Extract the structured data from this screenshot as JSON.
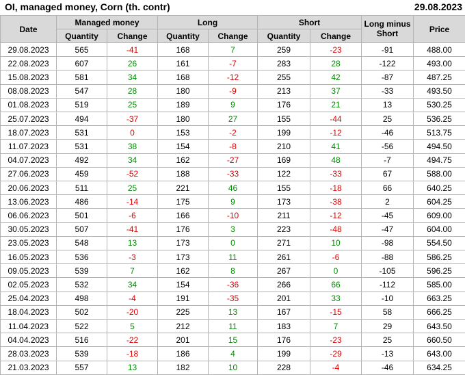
{
  "title": "OI, managed money, Corn (th. contr)",
  "report_date": "29.08.2023",
  "colors": {
    "positive": "#008b00",
    "negative": "#dd0000",
    "header_bg": "#d9d9d9",
    "border": "#b3b3b3",
    "text": "#000000"
  },
  "table_header": {
    "date": "Date",
    "managed_money": "Managed money",
    "long": "Long",
    "short": "Short",
    "long_minus_short": "Long minus Short",
    "price": "Price",
    "quantity": "Quantity",
    "change": "Change"
  },
  "chart_data": {
    "type": "table",
    "title": "OI, managed money, Corn (th. contr)",
    "as_of_date": "29.08.2023",
    "columns": [
      "Date",
      "Managed money Quantity",
      "Managed money Change",
      "Long Quantity",
      "Long Change",
      "Short Quantity",
      "Short Change",
      "Long minus Short",
      "Price"
    ],
    "rows": [
      {
        "cells": [
          "29.08.2023",
          "565",
          "-41",
          "168",
          "7",
          "259",
          "-23",
          "-91",
          "488.00"
        ],
        "change_colors": [
          "neg",
          "pos",
          "neg"
        ]
      },
      {
        "cells": [
          "22.08.2023",
          "607",
          "26",
          "161",
          "-7",
          "283",
          "28",
          "-122",
          "493.00"
        ],
        "change_colors": [
          "pos",
          "neg",
          "pos"
        ]
      },
      {
        "cells": [
          "15.08.2023",
          "581",
          "34",
          "168",
          "-12",
          "255",
          "42",
          "-87",
          "487.25"
        ],
        "change_colors": [
          "pos",
          "neg",
          "pos"
        ]
      },
      {
        "cells": [
          "08.08.2023",
          "547",
          "28",
          "180",
          "-9",
          "213",
          "37",
          "-33",
          "493.50"
        ],
        "change_colors": [
          "pos",
          "neg",
          "pos"
        ]
      },
      {
        "cells": [
          "01.08.2023",
          "519",
          "25",
          "189",
          "9",
          "176",
          "21",
          "13",
          "530.25"
        ],
        "change_colors": [
          "pos",
          "pos",
          "pos"
        ]
      },
      {
        "cells": [
          "25.07.2023",
          "494",
          "-37",
          "180",
          "27",
          "155",
          "-44",
          "25",
          "536.25"
        ],
        "change_colors": [
          "neg",
          "pos",
          "neg"
        ]
      },
      {
        "cells": [
          "18.07.2023",
          "531",
          "0",
          "153",
          "-2",
          "199",
          "-12",
          "-46",
          "513.75"
        ],
        "change_colors": [
          "neg",
          "neg",
          "neg"
        ]
      },
      {
        "cells": [
          "11.07.2023",
          "531",
          "38",
          "154",
          "-8",
          "210",
          "41",
          "-56",
          "494.50"
        ],
        "change_colors": [
          "pos",
          "neg",
          "pos"
        ]
      },
      {
        "cells": [
          "04.07.2023",
          "492",
          "34",
          "162",
          "-27",
          "169",
          "48",
          "-7",
          "494.75"
        ],
        "change_colors": [
          "pos",
          "neg",
          "pos"
        ]
      },
      {
        "cells": [
          "27.06.2023",
          "459",
          "-52",
          "188",
          "-33",
          "122",
          "-33",
          "67",
          "588.00"
        ],
        "change_colors": [
          "neg",
          "neg",
          "neg"
        ]
      },
      {
        "cells": [
          "20.06.2023",
          "511",
          "25",
          "221",
          "46",
          "155",
          "-18",
          "66",
          "640.25"
        ],
        "change_colors": [
          "pos",
          "pos",
          "neg"
        ]
      },
      {
        "cells": [
          "13.06.2023",
          "486",
          "-14",
          "175",
          "9",
          "173",
          "-38",
          "2",
          "604.25"
        ],
        "change_colors": [
          "neg",
          "pos",
          "neg"
        ]
      },
      {
        "cells": [
          "06.06.2023",
          "501",
          "-6",
          "166",
          "-10",
          "211",
          "-12",
          "-45",
          "609.00"
        ],
        "change_colors": [
          "neg",
          "neg",
          "neg"
        ]
      },
      {
        "cells": [
          "30.05.2023",
          "507",
          "-41",
          "176",
          "3",
          "223",
          "-48",
          "-47",
          "604.00"
        ],
        "change_colors": [
          "neg",
          "pos",
          "neg"
        ]
      },
      {
        "cells": [
          "23.05.2023",
          "548",
          "13",
          "173",
          "0",
          "271",
          "10",
          "-98",
          "554.50"
        ],
        "change_colors": [
          "pos",
          "pos",
          "pos"
        ]
      },
      {
        "cells": [
          "16.05.2023",
          "536",
          "-3",
          "173",
          "11",
          "261",
          "-6",
          "-88",
          "586.25"
        ],
        "change_colors": [
          "neg",
          "pos",
          "neg"
        ]
      },
      {
        "cells": [
          "09.05.2023",
          "539",
          "7",
          "162",
          "8",
          "267",
          "0",
          "-105",
          "596.25"
        ],
        "change_colors": [
          "pos",
          "pos",
          "pos"
        ]
      },
      {
        "cells": [
          "02.05.2023",
          "532",
          "34",
          "154",
          "-36",
          "266",
          "66",
          "-112",
          "585.00"
        ],
        "change_colors": [
          "pos",
          "neg",
          "pos"
        ]
      },
      {
        "cells": [
          "25.04.2023",
          "498",
          "-4",
          "191",
          "-35",
          "201",
          "33",
          "-10",
          "663.25"
        ],
        "change_colors": [
          "neg",
          "neg",
          "pos"
        ]
      },
      {
        "cells": [
          "18.04.2023",
          "502",
          "-20",
          "225",
          "13",
          "167",
          "-15",
          "58",
          "666.25"
        ],
        "change_colors": [
          "neg",
          "pos",
          "neg"
        ]
      },
      {
        "cells": [
          "11.04.2023",
          "522",
          "5",
          "212",
          "11",
          "183",
          "7",
          "29",
          "643.50"
        ],
        "change_colors": [
          "pos",
          "pos",
          "pos"
        ]
      },
      {
        "cells": [
          "04.04.2023",
          "516",
          "-22",
          "201",
          "15",
          "176",
          "-23",
          "25",
          "660.50"
        ],
        "change_colors": [
          "neg",
          "pos",
          "neg"
        ]
      },
      {
        "cells": [
          "28.03.2023",
          "539",
          "-18",
          "186",
          "4",
          "199",
          "-29",
          "-13",
          "643.00"
        ],
        "change_colors": [
          "neg",
          "pos",
          "neg"
        ]
      },
      {
        "cells": [
          "21.03.2023",
          "557",
          "13",
          "182",
          "10",
          "228",
          "-4",
          "-46",
          "634.25"
        ],
        "change_colors": [
          "pos",
          "pos",
          "neg"
        ]
      }
    ]
  }
}
